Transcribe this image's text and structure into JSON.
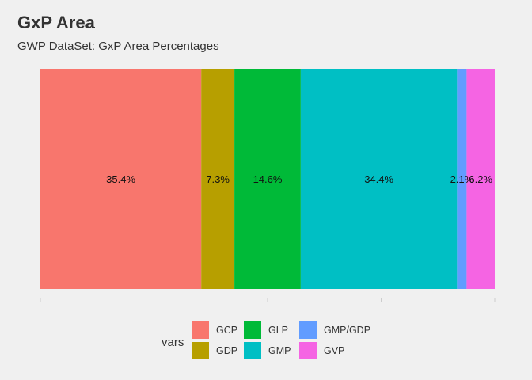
{
  "title": "GxP Area",
  "subtitle": "GWP DataSet: GxP Area Percentages",
  "chart_data": {
    "type": "bar",
    "stacked": true,
    "orientation": "horizontal",
    "unit": "%",
    "series": [
      {
        "name": "GCP",
        "value": 35.4,
        "label": "35.4%",
        "color": "#F8766D"
      },
      {
        "name": "GDP",
        "value": 7.3,
        "label": "7.3%",
        "color": "#B79F00"
      },
      {
        "name": "GLP",
        "value": 14.6,
        "label": "14.6%",
        "color": "#00BA38"
      },
      {
        "name": "GMP",
        "value": 34.4,
        "label": "34.4%",
        "color": "#00BFC4"
      },
      {
        "name": "GMP/GDP",
        "value": 2.1,
        "label": "2.1%",
        "color": "#619CFF"
      },
      {
        "name": "GVP",
        "value": 6.2,
        "label": "6.2%",
        "color": "#F564E3"
      }
    ],
    "xlim": [
      0,
      100
    ],
    "grid": true,
    "legend": {
      "title": "vars",
      "position": "bottom",
      "order": [
        "GCP",
        "GDP",
        "GLP",
        "GMP",
        "GMP/GDP",
        "GVP"
      ]
    }
  }
}
